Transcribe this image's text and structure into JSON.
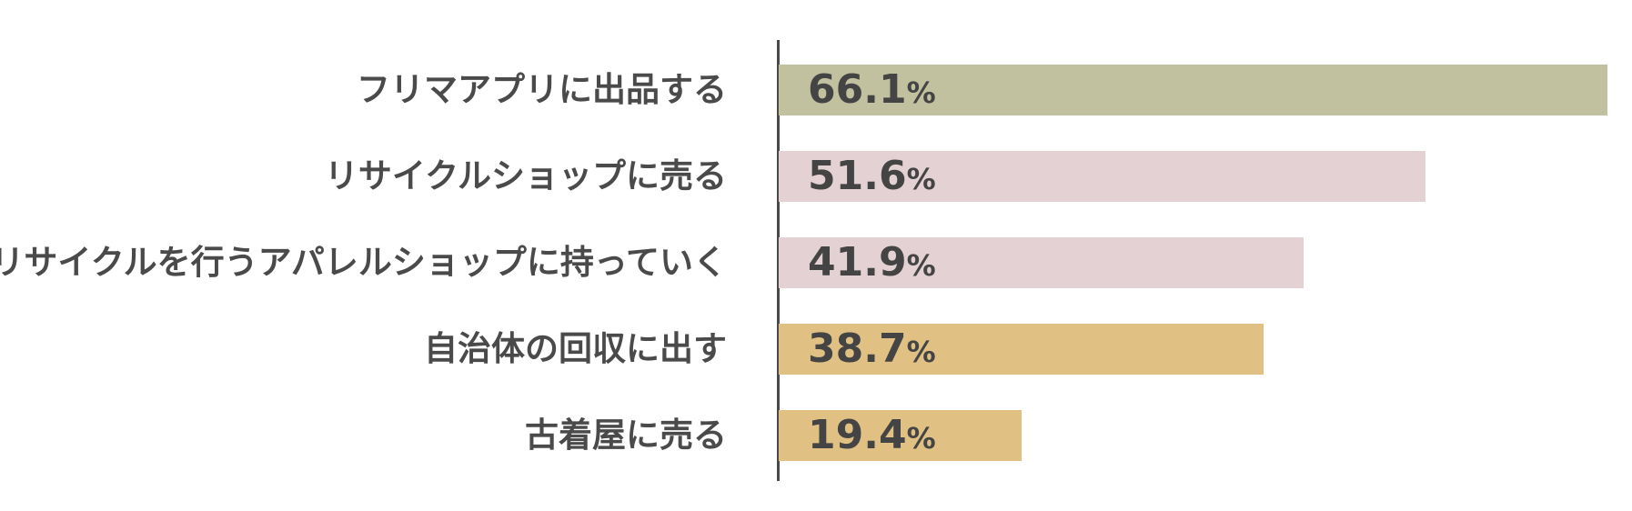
{
  "chart_data": {
    "type": "bar",
    "orientation": "horizontal",
    "categories": [
      "フリマアプリに出品する",
      "リサイクルショップに売る",
      "リサイクルを行うアパレルショップに持っていく",
      "自治体の回収に出す",
      "古着屋に売る"
    ],
    "values": [
      66.1,
      51.6,
      41.9,
      38.7,
      19.4
    ],
    "value_labels": [
      "66.1",
      "51.6",
      "41.9",
      "38.7",
      "19.4"
    ],
    "unit": "%",
    "colors": [
      "#c1c09f",
      "#e4d1d3",
      "#e4d1d3",
      "#e0c183",
      "#e0c183"
    ],
    "xlim": [
      0,
      66.1
    ],
    "grid": false,
    "legend": false
  }
}
